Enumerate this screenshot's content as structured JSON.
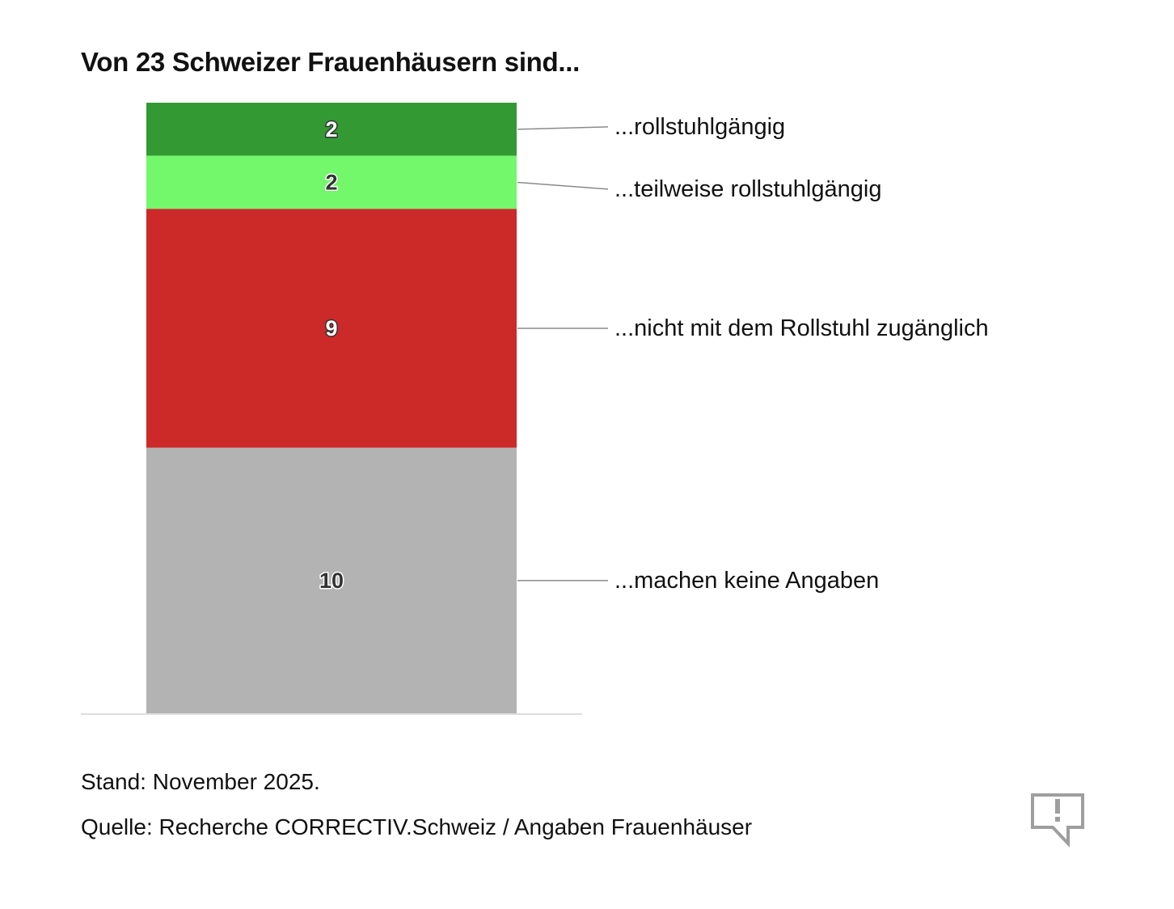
{
  "title": "Von 23 Schweizer Frauenhäusern sind...",
  "chart_data": {
    "type": "bar",
    "stacked": true,
    "total": 23,
    "categories": [
      ""
    ],
    "series": [
      {
        "name": "...rollstuhlgängig",
        "values": [
          2
        ],
        "color": "#339933",
        "label_color": "#ffffff"
      },
      {
        "name": "...teilweise rollstuhlgängig",
        "values": [
          2
        ],
        "color": "#73f76b",
        "label_color": "#333333"
      },
      {
        "name": "...nicht mit dem Rollstuhl zugänglich",
        "values": [
          9
        ],
        "color": "#cc2929",
        "label_color": "#ffffff"
      },
      {
        "name": "...machen keine Angaben",
        "values": [
          10
        ],
        "color": "#b3b3b3",
        "label_color": "#333333"
      }
    ],
    "legend": "right, inline labels with leader lines",
    "grid": false
  },
  "notes": {
    "stand": "Stand: November 2025.",
    "source": "Quelle: Recherche CORRECTIV.Schweiz / Angaben Frauenhäuser"
  },
  "logo_icon": "exclamation-speech-bubble-icon"
}
